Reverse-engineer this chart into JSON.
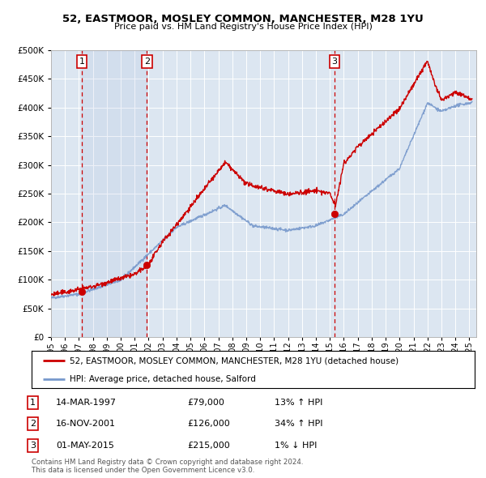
{
  "title": "52, EASTMOOR, MOSLEY COMMON, MANCHESTER, M28 1YU",
  "subtitle": "Price paid vs. HM Land Registry's House Price Index (HPI)",
  "legend_line1": "52, EASTMOOR, MOSLEY COMMON, MANCHESTER, M28 1YU (detached house)",
  "legend_line2": "HPI: Average price, detached house, Salford",
  "red_color": "#cc0000",
  "blue_color": "#7799cc",
  "bg_color": "#dce6f1",
  "plot_bg": "#dce6f1",
  "grid_color": "#ffffff",
  "vline_color": "#cc0000",
  "sale_points": [
    {
      "year": 1997.2,
      "price": 79000,
      "label": "1"
    },
    {
      "year": 2001.87,
      "price": 126000,
      "label": "2"
    },
    {
      "year": 2015.33,
      "price": 215000,
      "label": "3"
    }
  ],
  "table_rows": [
    {
      "num": "1",
      "date": "14-MAR-1997",
      "price": "£79,000",
      "change": "13% ↑ HPI"
    },
    {
      "num": "2",
      "date": "16-NOV-2001",
      "price": "£126,000",
      "change": "34% ↑ HPI"
    },
    {
      "num": "3",
      "date": "01-MAY-2015",
      "price": "£215,000",
      "change": "1% ↓ HPI"
    }
  ],
  "footnote1": "Contains HM Land Registry data © Crown copyright and database right 2024.",
  "footnote2": "This data is licensed under the Open Government Licence v3.0.",
  "ylim": [
    0,
    500000
  ],
  "yticks": [
    0,
    50000,
    100000,
    150000,
    200000,
    250000,
    300000,
    350000,
    400000,
    450000,
    500000
  ],
  "xmin": 1995.0,
  "xmax": 2025.5
}
